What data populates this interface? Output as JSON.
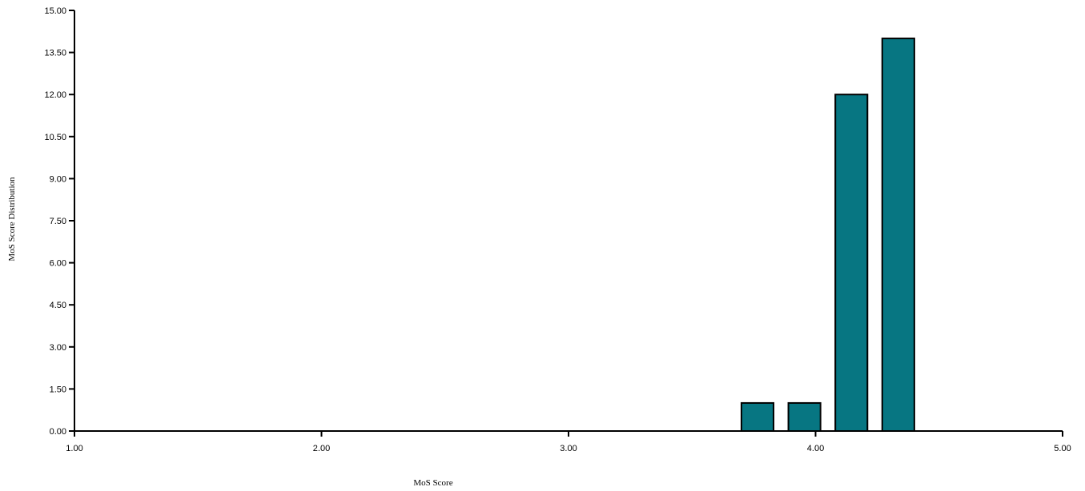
{
  "chart_data": {
    "type": "bar",
    "title": "",
    "xlabel": "MoS Score",
    "ylabel": "MoS Score Distribution",
    "xlim": [
      1.0,
      5.0
    ],
    "ylim": [
      0.0,
      15.0
    ],
    "x_ticks": [
      "1.00",
      "2.00",
      "3.00",
      "4.00",
      "5.00"
    ],
    "y_ticks": [
      "0.00",
      "1.50",
      "3.00",
      "4.50",
      "6.00",
      "7.50",
      "9.00",
      "10.50",
      "12.00",
      "13.50",
      "15.00"
    ],
    "bars": [
      {
        "x_start": 3.7,
        "x_end": 3.83,
        "value": 1
      },
      {
        "x_start": 3.89,
        "x_end": 4.02,
        "value": 1
      },
      {
        "x_start": 4.08,
        "x_end": 4.21,
        "value": 12
      },
      {
        "x_start": 4.27,
        "x_end": 4.4,
        "value": 14
      }
    ],
    "bar_color": "#077682",
    "edge_color": "#000000",
    "grid": false,
    "legend": "none"
  }
}
